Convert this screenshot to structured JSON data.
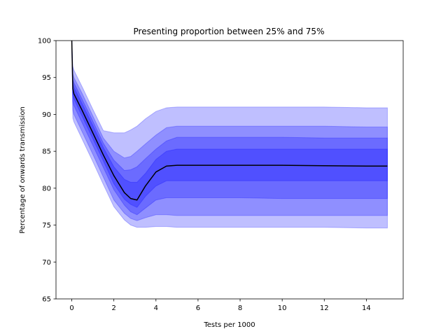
{
  "chart_data": {
    "type": "area",
    "title": "Presenting proportion between 25% and 75%",
    "xlabel": "Tests per 1000",
    "ylabel": "Percentage of onwards transmission",
    "xlim": [
      -0.75,
      15.75
    ],
    "ylim": [
      65,
      100
    ],
    "xticks": [
      0,
      2,
      4,
      6,
      8,
      10,
      12,
      14
    ],
    "yticks": [
      65,
      70,
      75,
      80,
      85,
      90,
      95,
      100
    ],
    "grid": false,
    "legend": "none",
    "band_color": "#0000ff",
    "line_color": "#000000",
    "x": [
      0,
      0.05,
      0.1,
      0.5,
      1.0,
      1.5,
      2.0,
      2.5,
      2.8,
      3.1,
      3.5,
      4.0,
      4.5,
      5.0,
      6,
      8,
      10,
      12,
      14,
      15
    ],
    "series": [
      {
        "values": [
          100,
          93.5,
          92.8,
          90.5,
          87.5,
          84.5,
          81.7,
          79.4,
          78.6,
          78.4,
          80.3,
          82.2,
          83.0,
          83.1,
          83.1,
          83.1,
          83.1,
          83.05,
          83.0,
          83.0
        ]
      }
    ],
    "bands": [
      {
        "upper": [
          100,
          96.5,
          96.0,
          93.7,
          90.7,
          87.8,
          87.5,
          87.5,
          87.9,
          88.4,
          89.4,
          90.4,
          90.9,
          91.0,
          91.0,
          91.0,
          91.0,
          91.0,
          90.9,
          90.9
        ],
        "lower": [
          100,
          89.5,
          89.0,
          86.6,
          83.6,
          80.5,
          77.5,
          75.7,
          75.0,
          74.7,
          74.7,
          74.8,
          74.8,
          74.7,
          74.7,
          74.7,
          74.7,
          74.7,
          74.6,
          74.6
        ]
      },
      {
        "upper": [
          100,
          95.5,
          95.0,
          92.8,
          89.8,
          86.8,
          85.0,
          84.1,
          84.3,
          85.0,
          86.0,
          87.2,
          88.2,
          88.4,
          88.4,
          88.4,
          88.4,
          88.4,
          88.3,
          88.3
        ]
      },
      {
        "upper": [
          100,
          94.8,
          94.3,
          92.0,
          89.1,
          86.1,
          83.8,
          82.4,
          82.5,
          82.9,
          84.0,
          85.3,
          86.4,
          86.9,
          86.9,
          86.9,
          86.9,
          86.8,
          86.8,
          86.8
        ]
      },
      {
        "upper": [
          100,
          94.3,
          93.7,
          91.4,
          88.5,
          85.5,
          82.9,
          81.2,
          80.8,
          80.8,
          82.0,
          83.9,
          85.0,
          85.3,
          85.3,
          85.3,
          85.3,
          85.3,
          85.3,
          85.3
        ]
      },
      {
        "lower": [
          100,
          92.7,
          92.1,
          89.7,
          86.7,
          83.7,
          80.6,
          78.5,
          77.8,
          77.4,
          78.9,
          80.3,
          81.0,
          81.0,
          81.0,
          81.0,
          81.0,
          81.0,
          81.0,
          81.0
        ]
      },
      {
        "lower": [
          100,
          91.8,
          91.2,
          88.8,
          85.8,
          82.8,
          79.8,
          77.7,
          76.8,
          76.4,
          77.3,
          78.4,
          78.7,
          78.7,
          78.7,
          78.7,
          78.6,
          78.6,
          78.6,
          78.6
        ]
      },
      {
        "lower": [
          100,
          90.6,
          90.0,
          87.6,
          84.6,
          81.5,
          78.4,
          76.6,
          75.9,
          75.6,
          76.0,
          76.4,
          76.4,
          76.3,
          76.3,
          76.3,
          76.3,
          76.3,
          76.3,
          76.3
        ]
      }
    ]
  }
}
